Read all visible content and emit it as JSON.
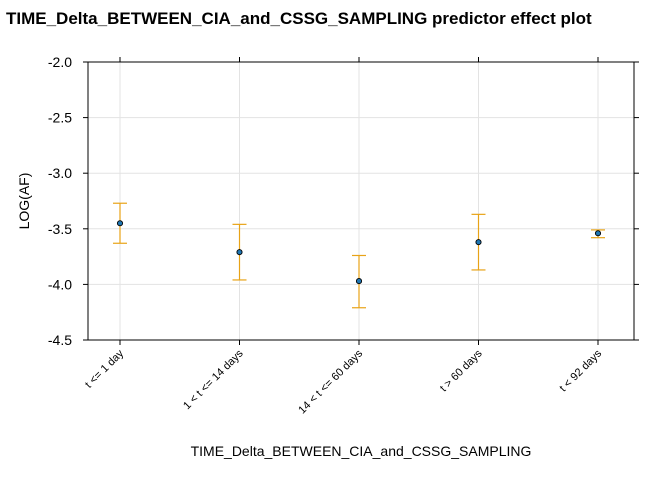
{
  "chart_data": {
    "type": "scatter",
    "title": "TIME_Delta_BETWEEN_CIA_and_CSSG_SAMPLING predictor effect plot",
    "xlabel": "TIME_Delta_BETWEEN_CIA_and_CSSG_SAMPLING",
    "ylabel": "LOG(AF)",
    "categories": [
      "t <= 1 day",
      "1 < t <= 14 days",
      "14 < t <= 60 days",
      "t > 60 days",
      "t < 92 days"
    ],
    "values": [
      -3.45,
      -3.71,
      -3.97,
      -3.62,
      -3.54
    ],
    "lower": [
      -3.63,
      -3.96,
      -4.21,
      -3.87,
      -3.58
    ],
    "upper": [
      -3.27,
      -3.46,
      -3.74,
      -3.37,
      -3.51
    ],
    "ylim": [
      -4.5,
      -2.0
    ],
    "yticks": [
      "-2.0",
      "-2.5",
      "-3.0",
      "-3.5",
      "-4.0",
      "-4.5"
    ],
    "grid": true,
    "colors": {
      "point_fill": "#1f77b4",
      "point_edge": "#000000",
      "errorbar": "#e8a317"
    }
  }
}
